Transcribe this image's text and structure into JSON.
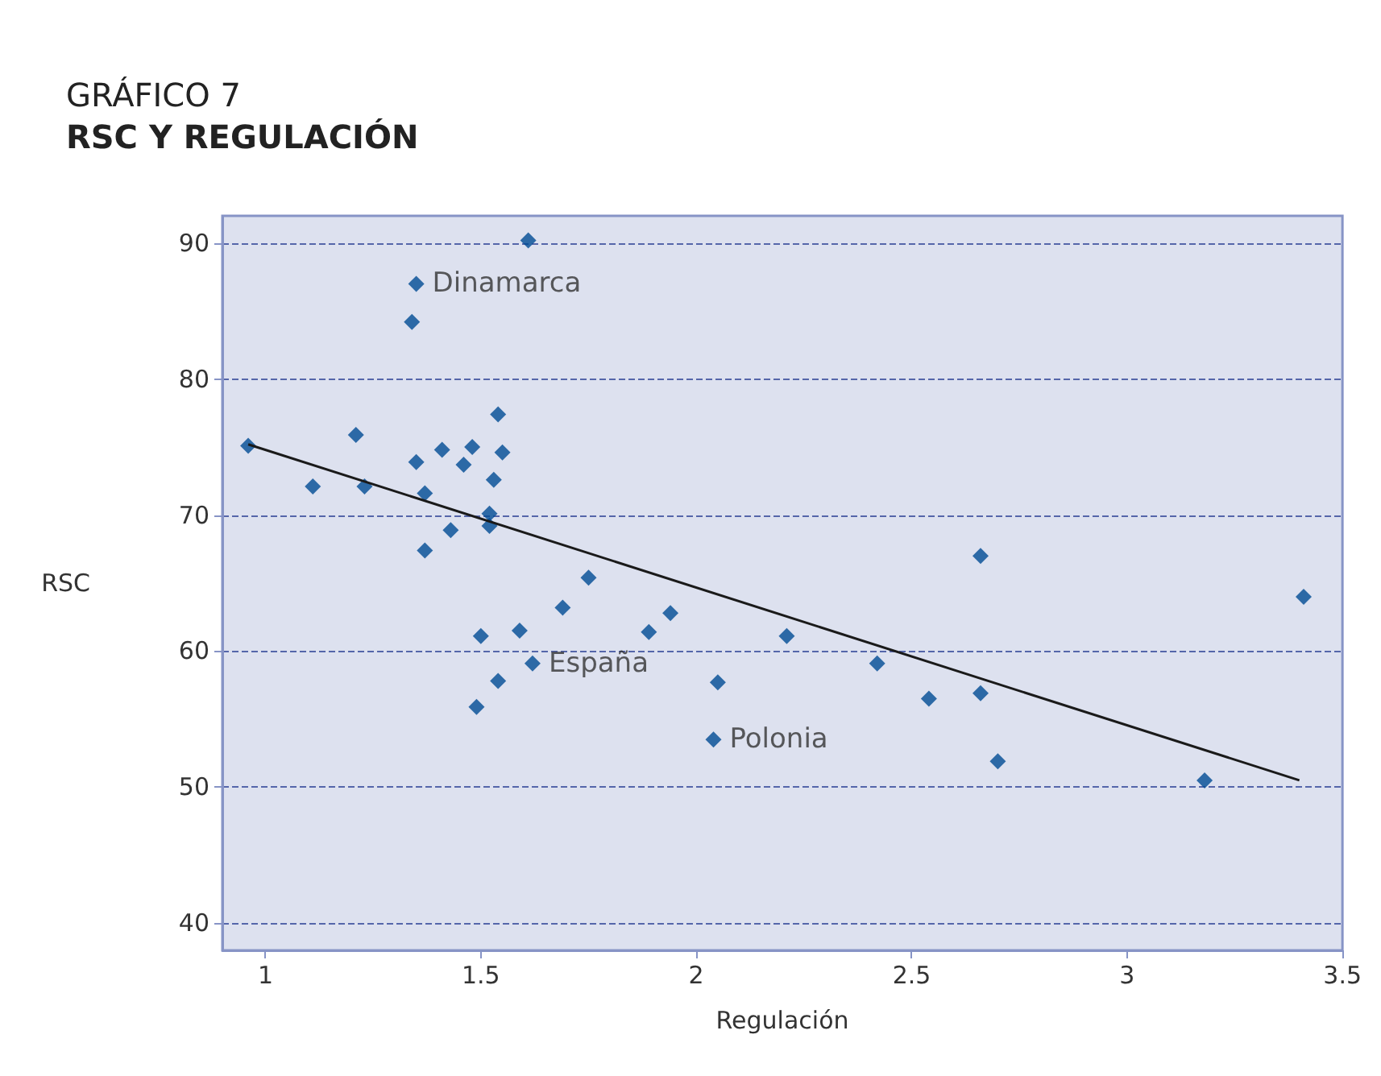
{
  "chart_data": {
    "type": "scatter",
    "title": "GRÁFICO 7",
    "subtitle": "RSC Y REGULACIÓN",
    "xlabel": "Regulación",
    "ylabel": "RSC",
    "series": [
      {
        "color": "#004b93",
        "marker": "diamond",
        "x": [
          0.96,
          1.11,
          1.21,
          1.23,
          1.34,
          1.35,
          1.35,
          1.37,
          1.37,
          1.41,
          1.43,
          1.46,
          1.48,
          1.5,
          1.49,
          1.52,
          1.52,
          1.53,
          1.54,
          1.55,
          1.54,
          1.59,
          1.61,
          1.62,
          1.69,
          1.75,
          1.89,
          1.94,
          2.05,
          2.04,
          2.21,
          2.42,
          2.54,
          2.66,
          2.66,
          2.7,
          3.18,
          3.41
        ],
        "values": [
          75.1,
          72.1,
          75.9,
          72.1,
          84.2,
          87.0,
          73.9,
          71.6,
          67.4,
          74.8,
          68.9,
          73.7,
          75.0,
          61.1,
          55.9,
          70.1,
          69.2,
          72.6,
          77.4,
          74.6,
          57.8,
          61.5,
          90.2,
          59.1,
          63.2,
          65.4,
          61.4,
          62.8,
          57.7,
          53.5,
          61.1,
          59.1,
          56.5,
          67.0,
          56.9,
          51.9,
          50.5,
          64.0
        ]
      },
      {
        "type": "line",
        "color": "#1a1a1a",
        "marker": "none",
        "line_style": "solid",
        "x": [
          0.96,
          3.4
        ],
        "values": [
          75.2,
          50.5
        ]
      }
    ],
    "annotations": [
      {
        "text": "Dinamarca",
        "x": 1.35,
        "y": 87.0
      },
      {
        "text": "España",
        "x": 1.62,
        "y": 59.1
      },
      {
        "text": "Polonia",
        "x": 2.04,
        "y": 53.5
      }
    ],
    "xlim": [
      0.9,
      3.5
    ],
    "xticks": [
      1,
      1.5,
      2,
      2.5,
      3,
      3.5
    ],
    "ylim": [
      38,
      92
    ],
    "yticks": [
      40,
      50,
      60,
      70,
      80,
      90
    ],
    "grid": "y"
  }
}
